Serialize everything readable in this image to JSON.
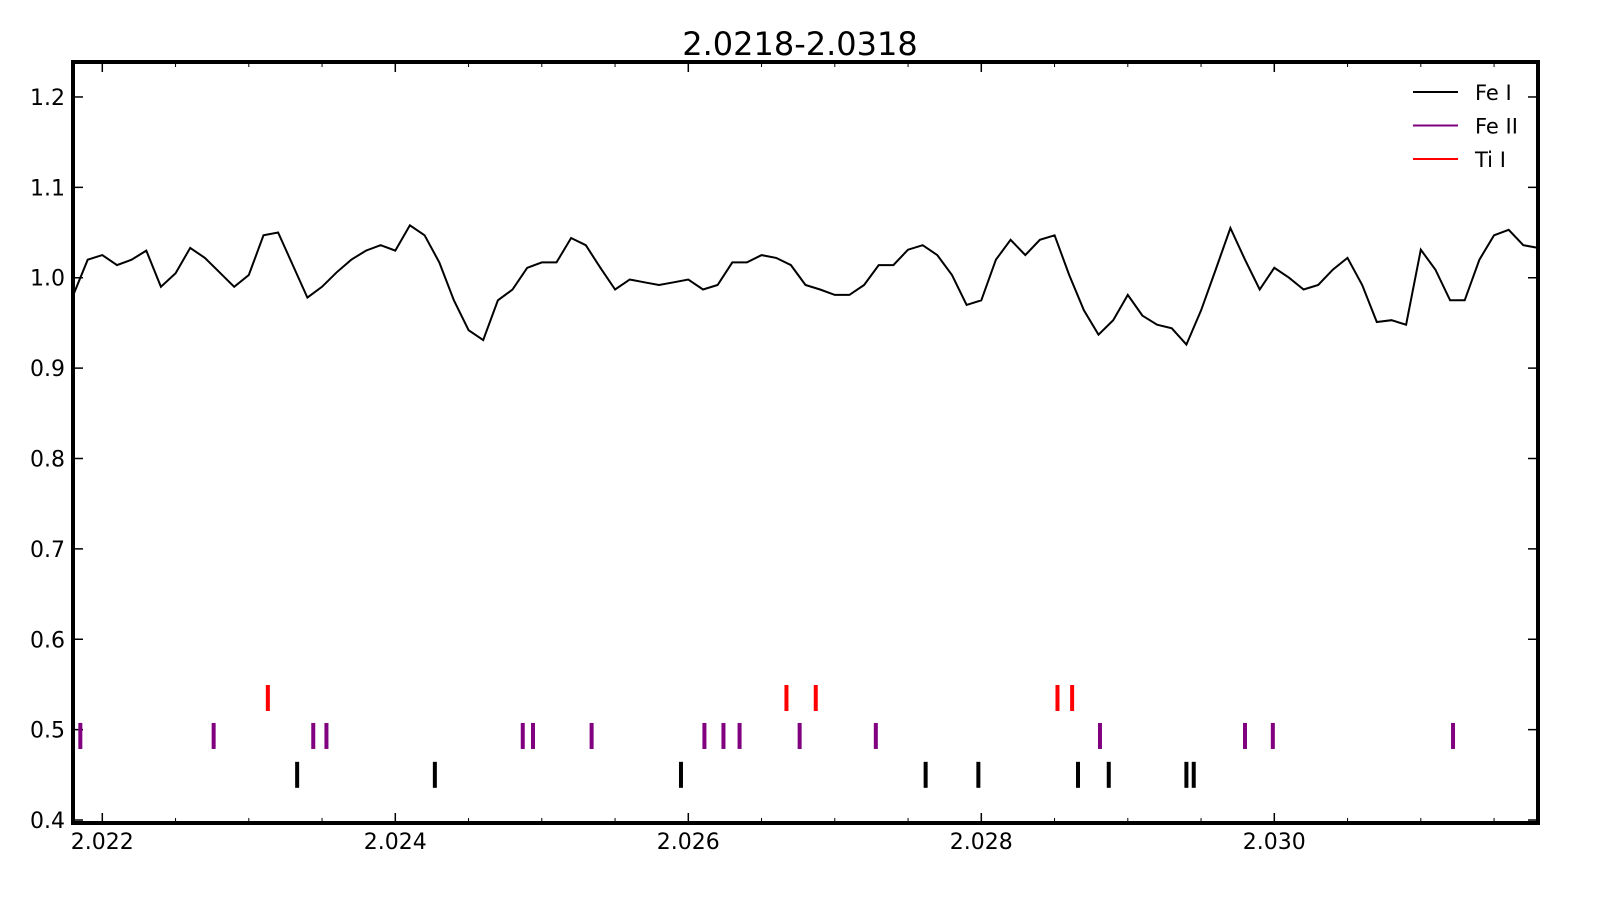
{
  "chart_data": {
    "type": "line",
    "title": "2.0218-2.0318",
    "x": [
      2.0218,
      2.0219,
      2.022,
      2.0221,
      2.0222,
      2.0223,
      2.0224,
      2.0225,
      2.0226,
      2.0227,
      2.0228,
      2.0229,
      2.023,
      2.0231,
      2.0232,
      2.0233,
      2.0234,
      2.0235,
      2.0236,
      2.0237,
      2.0238,
      2.0239,
      2.024,
      2.0241,
      2.0242,
      2.0243,
      2.0244,
      2.0245,
      2.0246,
      2.0247,
      2.0248,
      2.0249,
      2.025,
      2.0251,
      2.0252,
      2.0253,
      2.0254,
      2.0255,
      2.0256,
      2.0257,
      2.0258,
      2.0259,
      2.026,
      2.0261,
      2.0262,
      2.0263,
      2.0264,
      2.0265,
      2.0266,
      2.0267,
      2.0268,
      2.0269,
      2.027,
      2.0271,
      2.0272,
      2.0273,
      2.0274,
      2.0275,
      2.0276,
      2.0277,
      2.0278,
      2.0279,
      2.028,
      2.0281,
      2.0282,
      2.0283,
      2.0284,
      2.0285,
      2.0286,
      2.0287,
      2.0288,
      2.0289,
      2.029,
      2.0291,
      2.0292,
      2.0293,
      2.0294,
      2.0295,
      2.0296,
      2.0297,
      2.0298,
      2.0299,
      2.03,
      2.0301,
      2.0302,
      2.0303,
      2.0304,
      2.0305,
      2.0306,
      2.0307,
      2.0308,
      2.0309,
      2.031,
      2.0311,
      2.0312,
      2.0313,
      2.0314,
      2.0315,
      2.0316,
      2.0317,
      2.0318
    ],
    "values": [
      0.98,
      1.02,
      1.025,
      1.014,
      1.02,
      1.03,
      0.99,
      1.005,
      1.033,
      1.022,
      1.006,
      0.99,
      1.003,
      1.047,
      1.05,
      1.014,
      0.978,
      0.99,
      1.006,
      1.02,
      1.03,
      1.036,
      1.03,
      1.058,
      1.047,
      1.017,
      0.975,
      0.942,
      0.931,
      0.975,
      0.987,
      1.011,
      1.017,
      1.017,
      1.044,
      1.036,
      1.011,
      0.987,
      0.998,
      0.995,
      0.992,
      0.995,
      0.998,
      0.987,
      0.992,
      1.017,
      1.017,
      1.025,
      1.022,
      1.014,
      0.992,
      0.987,
      0.981,
      0.981,
      0.992,
      1.014,
      1.014,
      1.031,
      1.036,
      1.025,
      1.003,
      0.97,
      0.975,
      1.02,
      1.042,
      1.025,
      1.042,
      1.047,
      1.003,
      0.964,
      0.937,
      0.953,
      0.981,
      0.958,
      0.948,
      0.944,
      0.926,
      0.964,
      1.009,
      1.055,
      1.02,
      0.987,
      1.011,
      1.0,
      0.987,
      0.992,
      1.009,
      1.022,
      0.992,
      0.951,
      0.953,
      0.948,
      1.031,
      1.009,
      0.975,
      0.975,
      1.02,
      1.047,
      1.053,
      1.036,
      1.033
    ],
    "color": "#000000",
    "series": [
      {
        "name": "Fe I",
        "color": "#000000",
        "x": [
          2.02333,
          2.02427,
          2.02595,
          2.02762,
          2.02798,
          2.02866,
          2.02887,
          2.0294,
          2.02945
        ],
        "values": [
          0.45,
          0.45,
          0.45,
          0.45,
          0.45,
          0.45,
          0.45,
          0.45,
          0.45
        ]
      },
      {
        "name": "Fe II",
        "color": "#800080",
        "x": [
          2.02185,
          2.02276,
          2.02344,
          2.02353,
          2.02487,
          2.02494,
          2.02534,
          2.02611,
          2.02624,
          2.02635,
          2.02676,
          2.02728,
          2.02881,
          2.0298,
          2.02999,
          2.03122
        ],
        "values": [
          0.493,
          0.493,
          0.493,
          0.493,
          0.493,
          0.493,
          0.493,
          0.493,
          0.493,
          0.493,
          0.493,
          0.493,
          0.493,
          0.493,
          0.493,
          0.493
        ]
      },
      {
        "name": "Ti I",
        "color": "#ff0000",
        "x": [
          2.02313,
          2.02667,
          2.02687,
          2.02852,
          2.02862
        ],
        "values": [
          0.535,
          0.535,
          0.535,
          0.535,
          0.535
        ]
      }
    ],
    "xlim": [
      2.0218,
      2.0318
    ],
    "ylim": [
      0.3967,
      1.2387
    ],
    "xticks": [
      2.022,
      2.024,
      2.026,
      2.028,
      {
        "value": 2.03,
        "label": "2.030"
      }
    ],
    "xminorticks": [
      2.0225,
      2.023,
      2.0235,
      2.0245,
      2.025,
      2.0255,
      2.0265,
      2.027,
      2.0275,
      2.0285,
      2.029,
      2.0295,
      2.0305,
      2.031,
      2.0315
    ],
    "yticks": [
      0.4,
      0.5,
      0.6,
      0.7,
      0.8,
      0.9,
      {
        "value": 1,
        "label": "1.0"
      },
      1.1,
      1.2
    ],
    "legend": "upper right"
  }
}
